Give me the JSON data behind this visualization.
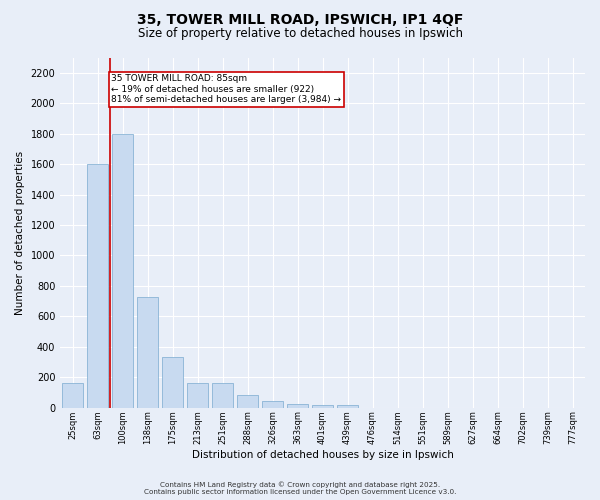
{
  "title_line1": "35, TOWER MILL ROAD, IPSWICH, IP1 4QF",
  "title_line2": "Size of property relative to detached houses in Ipswich",
  "xlabel": "Distribution of detached houses by size in Ipswich",
  "ylabel": "Number of detached properties",
  "categories": [
    "25sqm",
    "63sqm",
    "100sqm",
    "138sqm",
    "175sqm",
    "213sqm",
    "251sqm",
    "288sqm",
    "326sqm",
    "363sqm",
    "401sqm",
    "439sqm",
    "476sqm",
    "514sqm",
    "551sqm",
    "589sqm",
    "627sqm",
    "664sqm",
    "702sqm",
    "739sqm",
    "777sqm"
  ],
  "values": [
    165,
    1600,
    1800,
    730,
    330,
    160,
    160,
    80,
    45,
    25,
    15,
    15,
    0,
    0,
    0,
    0,
    0,
    0,
    0,
    0,
    0
  ],
  "bar_color": "#c8daf0",
  "bar_edge_color": "#7aaad0",
  "vline_color": "#cc0000",
  "vline_x": 1.5,
  "annotation_text": "35 TOWER MILL ROAD: 85sqm\n← 19% of detached houses are smaller (922)\n81% of semi-detached houses are larger (3,984) →",
  "annotation_box_facecolor": "#ffffff",
  "annotation_box_edgecolor": "#cc0000",
  "ylim": [
    0,
    2300
  ],
  "yticks": [
    0,
    200,
    400,
    600,
    800,
    1000,
    1200,
    1400,
    1600,
    1800,
    2000,
    2200
  ],
  "background_color": "#e8eef8",
  "grid_color": "#ffffff",
  "footer_text": "Contains HM Land Registry data © Crown copyright and database right 2025.\nContains public sector information licensed under the Open Government Licence v3.0."
}
